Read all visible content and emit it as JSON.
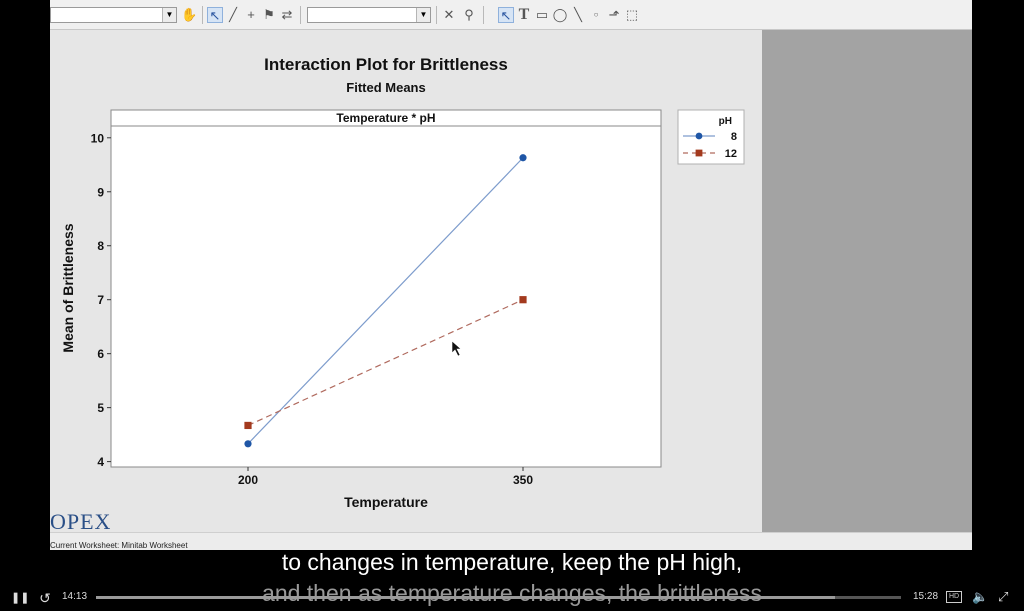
{
  "chart_data": {
    "type": "line",
    "title": "Interaction Plot for Brittleness",
    "subtitle": "Fitted Means",
    "panel_label": "Temperature * pH",
    "xlabel": "Temperature",
    "ylabel": "Mean of Brittleness",
    "categories": [
      "200",
      "350"
    ],
    "ylim": [
      3.9,
      10.2
    ],
    "yticks": [
      4,
      5,
      6,
      7,
      8,
      9,
      10
    ],
    "legend": {
      "title": "pH",
      "placement": "right"
    },
    "series": [
      {
        "name": "8",
        "values": [
          4.33,
          9.63
        ],
        "color": "#1f56a6",
        "line": "solid",
        "marker": "circle"
      },
      {
        "name": "12",
        "values": [
          4.67,
          7.0
        ],
        "color": "#a33a1e",
        "line": "dashed",
        "marker": "square"
      }
    ]
  },
  "status": {
    "worksheet_text": "Current Worksheet: Minitab Worksheet"
  },
  "logo": {
    "text": "OPEX"
  },
  "captions": {
    "line1": "to changes in temperature, keep the pH high,",
    "line2": "and then as temperature changes, the brittleness"
  },
  "player": {
    "current_time": "14:13",
    "total_time": "15:28",
    "progress": 0.918,
    "hd_label": "HD"
  },
  "icons": {
    "play": "pause-icon",
    "rewind": "rewind-10-icon",
    "volume": "volume-icon",
    "fullscreen": "fullscreen-icon"
  }
}
